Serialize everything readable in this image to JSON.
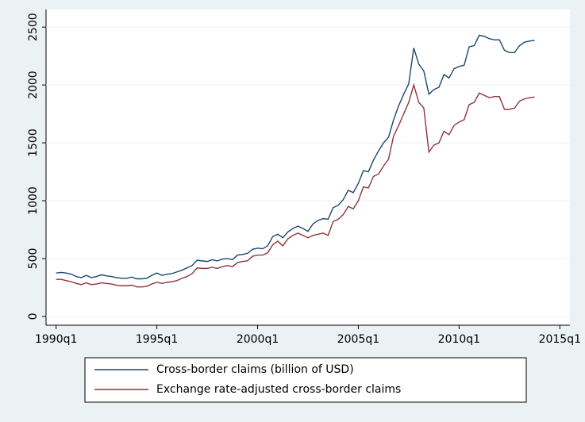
{
  "chart_data": {
    "type": "line",
    "x": [
      "1990q1",
      "1990q2",
      "1990q3",
      "1990q4",
      "1991q1",
      "1991q2",
      "1991q3",
      "1991q4",
      "1992q1",
      "1992q2",
      "1992q3",
      "1992q4",
      "1993q1",
      "1993q2",
      "1993q3",
      "1993q4",
      "1994q1",
      "1994q2",
      "1994q3",
      "1994q4",
      "1995q1",
      "1995q2",
      "1995q3",
      "1995q4",
      "1996q1",
      "1996q2",
      "1996q3",
      "1996q4",
      "1997q1",
      "1997q2",
      "1997q3",
      "1997q4",
      "1998q1",
      "1998q2",
      "1998q3",
      "1998q4",
      "1999q1",
      "1999q2",
      "1999q3",
      "1999q4",
      "2000q1",
      "2000q2",
      "2000q3",
      "2000q4",
      "2001q1",
      "2001q2",
      "2001q3",
      "2001q4",
      "2002q1",
      "2002q2",
      "2002q3",
      "2002q4",
      "2003q1",
      "2003q2",
      "2003q3",
      "2003q4",
      "2004q1",
      "2004q2",
      "2004q3",
      "2004q4",
      "2005q1",
      "2005q2",
      "2005q3",
      "2005q4",
      "2006q1",
      "2006q2",
      "2006q3",
      "2006q4",
      "2007q1",
      "2007q2",
      "2007q3",
      "2007q4",
      "2008q1",
      "2008q2",
      "2008q3",
      "2008q4",
      "2009q1",
      "2009q2",
      "2009q3",
      "2009q4",
      "2010q1",
      "2010q2",
      "2010q3",
      "2010q4",
      "2011q1",
      "2011q2",
      "2011q3",
      "2011q4",
      "2012q1",
      "2012q2",
      "2012q3",
      "2012q4",
      "2013q1",
      "2013q2",
      "2013q3",
      "2013q4"
    ],
    "series": [
      {
        "name": "Cross-border claims (billion of USD)",
        "color": "#1a476f",
        "values": [
          375,
          380,
          375,
          365,
          345,
          335,
          355,
          335,
          345,
          360,
          350,
          345,
          335,
          330,
          330,
          340,
          325,
          325,
          330,
          355,
          375,
          355,
          365,
          370,
          385,
          400,
          420,
          440,
          485,
          480,
          475,
          490,
          480,
          495,
          500,
          490,
          530,
          535,
          545,
          580,
          590,
          585,
          610,
          690,
          710,
          680,
          730,
          760,
          780,
          760,
          735,
          800,
          830,
          845,
          840,
          940,
          960,
          1010,
          1090,
          1070,
          1150,
          1260,
          1250,
          1350,
          1430,
          1500,
          1550,
          1700,
          1820,
          1920,
          2010,
          2320,
          2180,
          2120,
          1920,
          1960,
          1980,
          2090,
          2060,
          2140,
          2160,
          2170,
          2330,
          2340,
          2430,
          2420,
          2400,
          2390,
          2390,
          2300,
          2280,
          2280,
          2340,
          2370,
          2380,
          2385
        ]
      },
      {
        "name": "Exchange rate-adjusted cross-border claims",
        "color": "#90353b",
        "values": [
          320,
          320,
          310,
          300,
          285,
          275,
          290,
          275,
          280,
          290,
          285,
          280,
          270,
          265,
          265,
          270,
          255,
          255,
          260,
          280,
          295,
          285,
          295,
          300,
          310,
          330,
          345,
          370,
          420,
          415,
          415,
          425,
          415,
          430,
          440,
          430,
          465,
          475,
          480,
          520,
          530,
          530,
          550,
          620,
          650,
          610,
          670,
          700,
          720,
          700,
          680,
          700,
          710,
          720,
          700,
          820,
          840,
          880,
          950,
          930,
          1000,
          1120,
          1110,
          1210,
          1230,
          1300,
          1360,
          1560,
          1650,
          1750,
          1850,
          2000,
          1850,
          1800,
          1420,
          1480,
          1500,
          1600,
          1570,
          1650,
          1680,
          1700,
          1830,
          1850,
          1930,
          1910,
          1890,
          1900,
          1900,
          1790,
          1790,
          1800,
          1860,
          1880,
          1890,
          1895
        ]
      }
    ],
    "xlim": [
      "1989q3",
      "2015q3"
    ],
    "xticks": [
      "1990q1",
      "1995q1",
      "2000q1",
      "2005q1",
      "2010q1",
      "2015q1"
    ],
    "ylim": [
      -76,
      2652
    ],
    "yticks": [
      0,
      500,
      1000,
      1500,
      2000,
      2500
    ],
    "grid": true,
    "legend": "bottom"
  }
}
